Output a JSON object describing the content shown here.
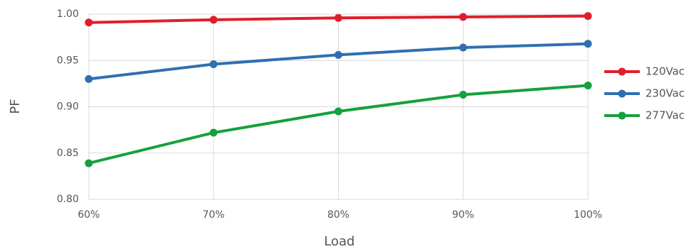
{
  "chart_data": {
    "type": "line",
    "title": "",
    "xlabel": "Load",
    "ylabel": "PF",
    "categories": [
      "60%",
      "70%",
      "80%",
      "90%",
      "100%"
    ],
    "yticks": [
      "0.80",
      "0.85",
      "0.90",
      "0.95",
      "1.00"
    ],
    "ylim": [
      0.8,
      1.0
    ],
    "grid": true,
    "legend_position": "right",
    "series": [
      {
        "name": "120Vac",
        "color": "#e01e2a",
        "values": [
          0.991,
          0.994,
          0.996,
          0.997,
          0.998
        ]
      },
      {
        "name": "230Vac",
        "color": "#2f6fb1",
        "values": [
          0.93,
          0.946,
          0.956,
          0.964,
          0.968
        ]
      },
      {
        "name": "277Vac",
        "color": "#16a03c",
        "values": [
          0.839,
          0.872,
          0.895,
          0.913,
          0.923
        ]
      }
    ]
  }
}
